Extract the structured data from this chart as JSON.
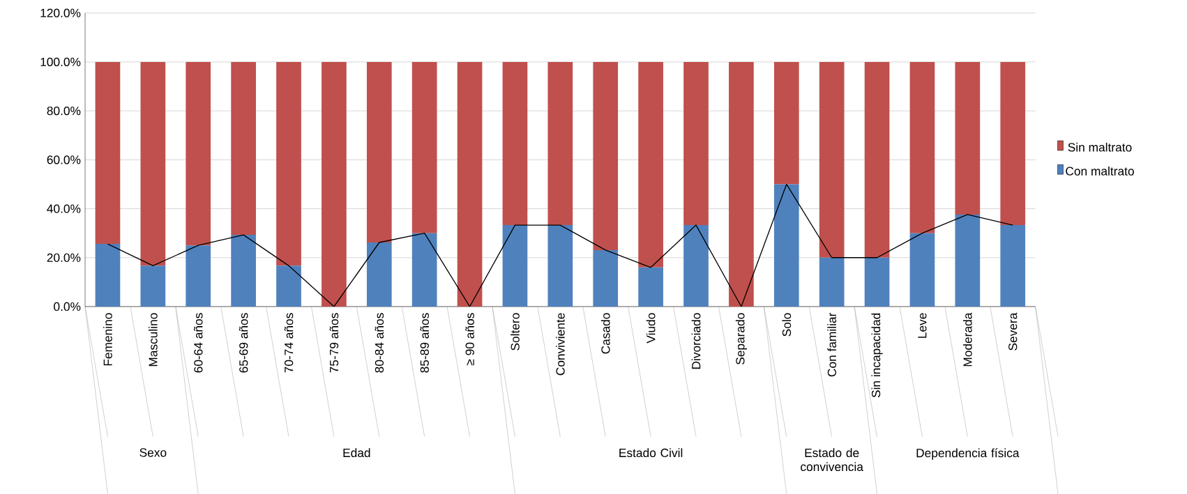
{
  "chart_data": {
    "type": "bar",
    "stacked": true,
    "categories": [
      "Femenino",
      "Masculino",
      "60-64 años",
      "65-69 años",
      "70-74 años",
      "75-79 años",
      "80-84 años",
      "85-89 años",
      "≥ 90 años",
      "Soltero",
      "Conviviente",
      "Casado",
      "Viudo",
      "Divorciado",
      "Separado",
      "Solo",
      "Con familiar",
      "Sin incapacidad",
      "Leve",
      "Moderada",
      "Severa"
    ],
    "series": [
      {
        "name": "Con maltrato",
        "color": "#4f81bd",
        "values": [
          25.6,
          16.7,
          25.0,
          29.3,
          16.7,
          0,
          26.2,
          30.0,
          0,
          33.3,
          33.3,
          23.1,
          16.0,
          33.3,
          0,
          50.0,
          20.0,
          20.0,
          30.0,
          37.6,
          33.3
        ]
      },
      {
        "name": "Sin maltrato",
        "color": "#c0504d",
        "values": [
          74.4,
          83.3,
          75.0,
          70.7,
          83.3,
          100,
          73.8,
          70.0,
          100,
          66.7,
          66.7,
          76.9,
          84.0,
          66.7,
          100,
          50.0,
          80.0,
          80.0,
          70.0,
          62.4,
          66.7
        ]
      },
      {
        "type": "line",
        "color": "#000000",
        "values": [
          25.6,
          16.7,
          25.0,
          29.3,
          16.7,
          0,
          26.2,
          30.0,
          0,
          33.3,
          33.3,
          23.1,
          16.0,
          33.3,
          0,
          50.0,
          20.0,
          20.0,
          30.0,
          37.6,
          33.3
        ]
      }
    ],
    "ylim": [
      0,
      120
    ],
    "yticks": [
      {
        "value": 0,
        "label": "0.0%"
      },
      {
        "value": 20,
        "label": "20.0%"
      },
      {
        "value": 40,
        "label": "40.0%"
      },
      {
        "value": 60,
        "label": "60.0%"
      },
      {
        "value": 80,
        "label": "80.0%"
      },
      {
        "value": 100,
        "label": "100.0%"
      },
      {
        "value": 120,
        "label": "120.0%"
      }
    ],
    "grid": "y",
    "legend": "right",
    "marker": "none",
    "annotations": [
      "Sexo",
      "Edad",
      "Estado Civil",
      "Estado de convivencia",
      "Dependencia física"
    ]
  }
}
